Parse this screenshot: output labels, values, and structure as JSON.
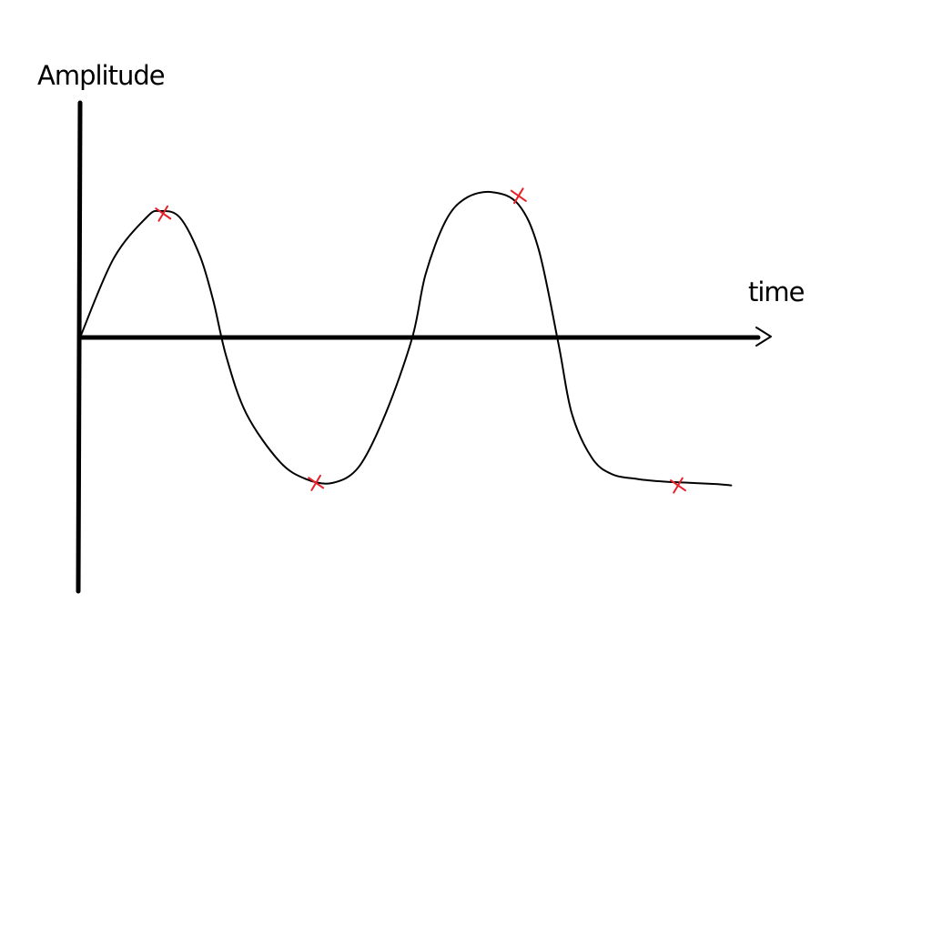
{
  "chart_data": {
    "type": "line",
    "title": "",
    "xlabel": "time",
    "ylabel": "Amplitude",
    "xlim": [
      0,
      10
    ],
    "ylim": [
      -1.25,
      1.25
    ],
    "grid": false,
    "legend": "none",
    "series": [
      {
        "x": [
          0.0,
          0.5,
          1.0,
          1.2,
          1.5,
          1.8,
          2.0,
          2.2,
          2.5,
          3.0,
          3.4,
          3.8,
          4.2,
          4.6,
          5.0,
          5.2,
          5.5,
          5.8,
          6.2,
          6.6,
          6.9,
          7.2,
          7.4,
          7.7,
          8.0,
          8.4,
          8.8,
          9.2,
          9.6,
          9.8
        ],
        "y": [
          0.0,
          0.62,
          0.95,
          1.0,
          0.95,
          0.65,
          0.3,
          -0.15,
          -0.6,
          -0.98,
          -1.12,
          -1.15,
          -1.02,
          -0.6,
          0.0,
          0.5,
          0.92,
          1.1,
          1.15,
          1.05,
          0.7,
          -0.05,
          -0.6,
          -0.95,
          -1.08,
          -1.12,
          -1.14,
          -1.15,
          -1.16,
          -1.17
        ]
      }
    ],
    "marked_points": [
      {
        "x": 1.25,
        "y": 0.98
      },
      {
        "x": 3.55,
        "y": -1.15
      },
      {
        "x": 6.6,
        "y": 1.12
      },
      {
        "x": 9.0,
        "y": -1.17
      }
    ],
    "colors": {
      "curve": "#000000",
      "axes": "#000000",
      "markers": "#e8202a"
    }
  }
}
